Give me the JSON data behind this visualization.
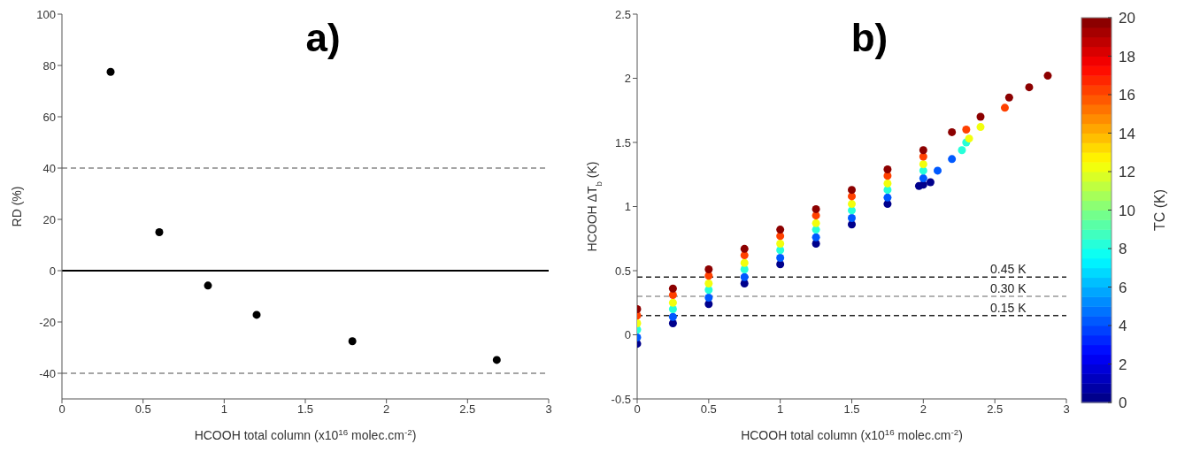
{
  "chart_data": [
    {
      "type": "scatter",
      "title": "a)",
      "xlabel": "HCOOH total column (x10$^{16}$ molec.cm$^{-2}$)",
      "ylabel": "RD (%)",
      "marker": "circle",
      "color": "#000000",
      "x": [
        0.3,
        0.6,
        0.9,
        1.2,
        1.79,
        2.68
      ],
      "values": [
        77.5,
        15,
        -5.8,
        -17.2,
        -27.5,
        -34.8
      ],
      "xlim": [
        0,
        3
      ],
      "xticks": [
        0,
        0.5,
        1,
        1.5,
        2,
        2.5,
        3
      ],
      "ylim": [
        -50,
        100
      ],
      "yticks": [
        -40,
        -20,
        0,
        20,
        40,
        60,
        80,
        100
      ],
      "ref_lines": [
        {
          "axis": "y",
          "value": 40,
          "color": "#888888",
          "line_style": "dashed"
        },
        {
          "axis": "y",
          "value": 0,
          "color": "#000000",
          "line_style": "solid"
        },
        {
          "axis": "y",
          "value": -40,
          "color": "#888888",
          "line_style": "dashed"
        }
      ]
    },
    {
      "type": "scatter",
      "title": "b)",
      "xlabel": "HCOOH total column (x10$^{16}$ molec.cm$^{-2}$)",
      "ylabel": "HCOOH ΔT$_{b}$ (K)",
      "clabel": "TC (K)",
      "marker": "circle",
      "x": [
        0,
        0.25,
        0.5,
        0.75,
        1,
        1.25,
        1.5,
        1.75,
        2,
        1.97,
        2.05,
        0,
        0.25,
        0.5,
        0.75,
        1,
        1.25,
        1.5,
        1.75,
        2,
        2.1,
        2.2,
        0,
        0.25,
        0.5,
        0.75,
        1,
        1.25,
        1.5,
        1.75,
        2,
        2.27,
        2.3,
        0,
        0.25,
        0.5,
        0.75,
        1,
        1.25,
        1.5,
        1.75,
        2,
        2.32,
        2.4,
        0,
        0.25,
        0.5,
        0.75,
        1,
        1.25,
        1.5,
        1.75,
        2,
        2.3,
        2.57,
        0,
        0.25,
        0.5,
        0.75,
        1,
        1.25,
        1.5,
        1.75,
        2,
        2.2,
        2.4,
        2.6,
        2.74,
        2.87
      ],
      "values": [
        -0.07,
        0.09,
        0.24,
        0.4,
        0.55,
        0.71,
        0.86,
        1.02,
        1.17,
        1.16,
        1.19,
        -0.02,
        0.14,
        0.29,
        0.45,
        0.6,
        0.76,
        0.91,
        1.07,
        1.22,
        1.28,
        1.37,
        0.04,
        0.2,
        0.35,
        0.51,
        0.66,
        0.82,
        0.97,
        1.13,
        1.28,
        1.44,
        1.5,
        0.09,
        0.25,
        0.4,
        0.56,
        0.71,
        0.87,
        1.02,
        1.18,
        1.33,
        1.53,
        1.62,
        0.15,
        0.31,
        0.46,
        0.62,
        0.77,
        0.93,
        1.08,
        1.24,
        1.39,
        1.6,
        1.77,
        0.2,
        0.36,
        0.51,
        0.67,
        0.82,
        0.98,
        1.13,
        1.29,
        1.44,
        1.58,
        1.7,
        1.85,
        1.93,
        2.02
      ],
      "cvalues": [
        0,
        0,
        0,
        0,
        0,
        0,
        0,
        0,
        0,
        0,
        0,
        4,
        4,
        4,
        4,
        4,
        4,
        4,
        4,
        4,
        4,
        4,
        8,
        8,
        8,
        8,
        8,
        8,
        8,
        8,
        8,
        8,
        8,
        12,
        12,
        12,
        12,
        12,
        12,
        12,
        12,
        12,
        12,
        12,
        16,
        16,
        16,
        16,
        16,
        16,
        16,
        16,
        16,
        16,
        16,
        20,
        20,
        20,
        20,
        20,
        20,
        20,
        20,
        20,
        20,
        20,
        20,
        20,
        20
      ],
      "clim": [
        0,
        20
      ],
      "cticks": [
        0,
        2,
        4,
        6,
        8,
        10,
        12,
        14,
        16,
        18,
        20
      ],
      "xlim": [
        0,
        3
      ],
      "xticks": [
        0,
        0.5,
        1,
        1.5,
        2,
        2.5,
        3
      ],
      "ylim": [
        -0.5,
        2.5
      ],
      "yticks": [
        -0.5,
        0,
        0.5,
        1,
        1.5,
        2,
        2.5
      ],
      "ref_lines": [
        {
          "axis": "y",
          "value": 0.45,
          "label": "0.45 K",
          "color": "#222222",
          "line_style": "dashed"
        },
        {
          "axis": "y",
          "value": 0.3,
          "label": "0.30 K",
          "color": "#999999",
          "line_style": "dashed"
        },
        {
          "axis": "y",
          "value": 0.15,
          "label": "0.15 K",
          "color": "#222222",
          "line_style": "dashed"
        }
      ]
    }
  ]
}
